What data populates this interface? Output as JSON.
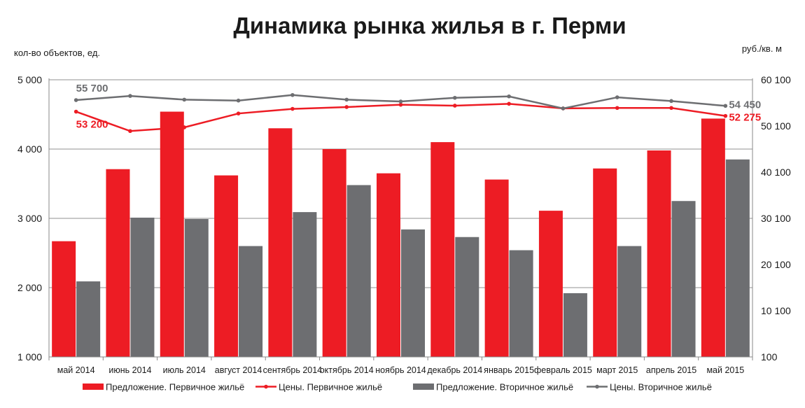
{
  "chart_data": {
    "type": "bar",
    "title": "Динамика рынка жилья в г. Перми",
    "ylabel_left": "кол-во объектов, ед.",
    "ylabel_right": "руб./кв. м",
    "categories": [
      "май 2014",
      "июнь 2014",
      "июль 2014",
      "август 2014",
      "сентябрь 2014",
      "октябрь 2014",
      "ноябрь 2014",
      "декабрь 2014",
      "январь 2015",
      "февраль 2015",
      "март 2015",
      "апрель 2015",
      "май 2015"
    ],
    "left_axis": {
      "ylim": [
        1000,
        5000
      ],
      "ticks": [
        1000,
        2000,
        3000,
        4000,
        5000
      ],
      "tick_labels": [
        "1 000",
        "2 000",
        "3 000",
        "4 000",
        "5 000"
      ]
    },
    "right_axis": {
      "ylim": [
        100,
        60100
      ],
      "ticks": [
        100,
        10100,
        20100,
        30100,
        40100,
        50100,
        60100
      ],
      "tick_labels": [
        "100",
        "10 100",
        "20 100",
        "30 100",
        "40 100",
        "50 100",
        "60 100"
      ]
    },
    "grid": true,
    "legend_position": "bottom",
    "series": [
      {
        "name": "Предложение. Первичное жильё",
        "kind": "bar",
        "axis": "left",
        "color": "#ed1c24",
        "values": [
          2670,
          3710,
          4540,
          3620,
          4300,
          4000,
          3650,
          4100,
          3560,
          3110,
          3720,
          3980,
          4440
        ]
      },
      {
        "name": "Предложение. Вторичное жильё",
        "kind": "bar",
        "axis": "left",
        "color": "#6d6e71",
        "values": [
          2090,
          3010,
          2990,
          2600,
          3090,
          3480,
          2840,
          2730,
          2540,
          1920,
          2600,
          3250,
          3850
        ]
      },
      {
        "name": "Цены. Первичное жильё",
        "kind": "line",
        "axis": "right",
        "color": "#ed1c24",
        "values": [
          53200,
          49000,
          49800,
          52800,
          53800,
          54200,
          54700,
          54500,
          54900,
          53900,
          54000,
          54000,
          52275
        ]
      },
      {
        "name": "Цены. Вторичное жильё",
        "kind": "line",
        "axis": "right",
        "color": "#6d6e71",
        "values": [
          55700,
          56600,
          55800,
          55600,
          56800,
          55800,
          55400,
          56200,
          56500,
          53900,
          56300,
          55500,
          54450
        ]
      }
    ],
    "annotations": [
      {
        "series": 3,
        "index": 0,
        "text": "55 700",
        "color": "#6d6e71"
      },
      {
        "series": 2,
        "index": 0,
        "text": "53 200",
        "color": "#ed1c24"
      },
      {
        "series": 3,
        "index": 12,
        "text": "54 450",
        "color": "#6d6e71"
      },
      {
        "series": 2,
        "index": 12,
        "text": "52 275",
        "color": "#ed1c24"
      }
    ]
  }
}
